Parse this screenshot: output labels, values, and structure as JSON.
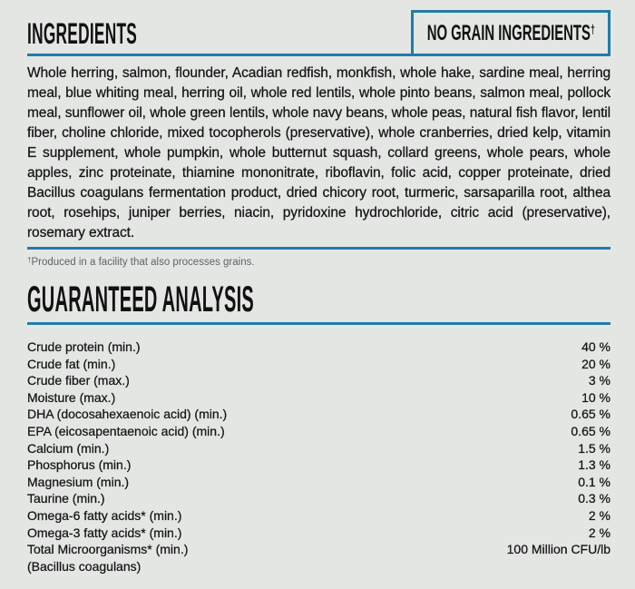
{
  "page": {
    "background_color": "#e4e6e4",
    "accent_color": "#207ca8",
    "text_color": "#151515"
  },
  "ingredients_section": {
    "title": "INGREDIENTS",
    "badge": {
      "label": "NO GRAIN INGREDIENTS",
      "dagger": "†"
    },
    "body": "Whole herring, salmon, flounder, Acadian redfish, monkfish, whole hake, sardine meal, herring meal, blue whiting meal, herring oil, whole red lentils, whole pinto beans, salmon meal, pollock meal, sunflower oil, whole green lentils, whole navy beans, whole peas, natural fish flavor, lentil fiber, choline chloride, mixed tocopherols (preservative), whole cranberries, dried kelp, vitamin E supplement, whole pumpkin, whole butternut squash, collard greens, whole pears, whole apples, zinc proteinate, thiamine mononitrate, riboflavin, folic acid, copper proteinate, dried Bacillus coagulans fermentation product, dried chicory root, turmeric, sarsaparilla root, althea root, rosehips, juniper berries, niacin, pyridoxine hydrochloride, citric acid (preservative), rosemary extract.",
    "footnote": {
      "dagger": "†",
      "text": "Produced in a facility that also processes grains."
    }
  },
  "analysis_section": {
    "title": "GUARANTEED ANALYSIS",
    "rows": [
      {
        "label": "Crude protein (min.)",
        "value": "40 %"
      },
      {
        "label": "Crude fat (min.)",
        "value": "20 %"
      },
      {
        "label": "Crude fiber (max.)",
        "value": "3 %"
      },
      {
        "label": "Moisture (max.)",
        "value": "10 %"
      },
      {
        "label": "DHA (docosahexaenoic acid) (min.)",
        "value": "0.65 %"
      },
      {
        "label": "EPA (eicosapentaenoic acid) (min.)",
        "value": "0.65 %"
      },
      {
        "label": "Calcium (min.)",
        "value": "1.5 %"
      },
      {
        "label": "Phosphorus (min.)",
        "value": "1.3 %"
      },
      {
        "label": "Magnesium (min.)",
        "value": "0.1 %"
      },
      {
        "label": "Taurine (min.)",
        "value": "0.3 %"
      },
      {
        "label": "Omega-6 fatty acids* (min.)",
        "value": "2 %"
      },
      {
        "label": "Omega-3 fatty acids* (min.)",
        "value": "2 %"
      },
      {
        "label": "Total Microorganisms* (min.)",
        "value": "100 Million CFU/lb"
      },
      {
        "label": "(Bacillus coagulans)",
        "value": ""
      }
    ]
  }
}
